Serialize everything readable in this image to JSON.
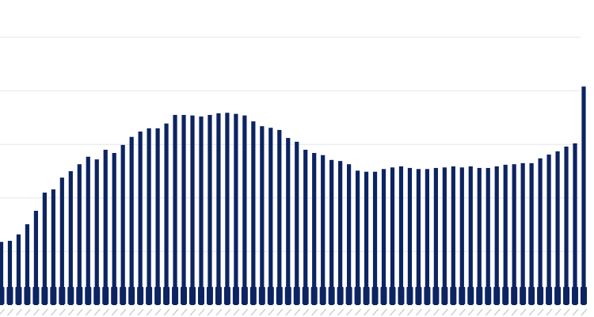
{
  "chart_data": {
    "type": "bar",
    "title": "",
    "xlabel": "",
    "ylabel": "",
    "ylim": [
      0,
      5
    ],
    "grid": true,
    "legend": "none",
    "bar_color": "#0c2461",
    "grid_color": "#e6e6e6",
    "values": [
      1.18,
      1.2,
      1.32,
      1.51,
      1.76,
      2.1,
      2.16,
      2.38,
      2.5,
      2.63,
      2.77,
      2.72,
      2.9,
      2.84,
      2.99,
      3.14,
      3.24,
      3.3,
      3.3,
      3.39,
      3.55,
      3.55,
      3.54,
      3.52,
      3.55,
      3.58,
      3.59,
      3.57,
      3.54,
      3.43,
      3.34,
      3.31,
      3.27,
      3.12,
      3.05,
      2.9,
      2.84,
      2.8,
      2.71,
      2.69,
      2.63,
      2.51,
      2.49,
      2.49,
      2.54,
      2.57,
      2.59,
      2.56,
      2.54,
      2.54,
      2.56,
      2.57,
      2.59,
      2.57,
      2.59,
      2.56,
      2.56,
      2.59,
      2.62,
      2.63,
      2.65,
      2.65,
      2.74,
      2.81,
      2.87,
      2.96,
      3.02,
      4.08
    ]
  }
}
